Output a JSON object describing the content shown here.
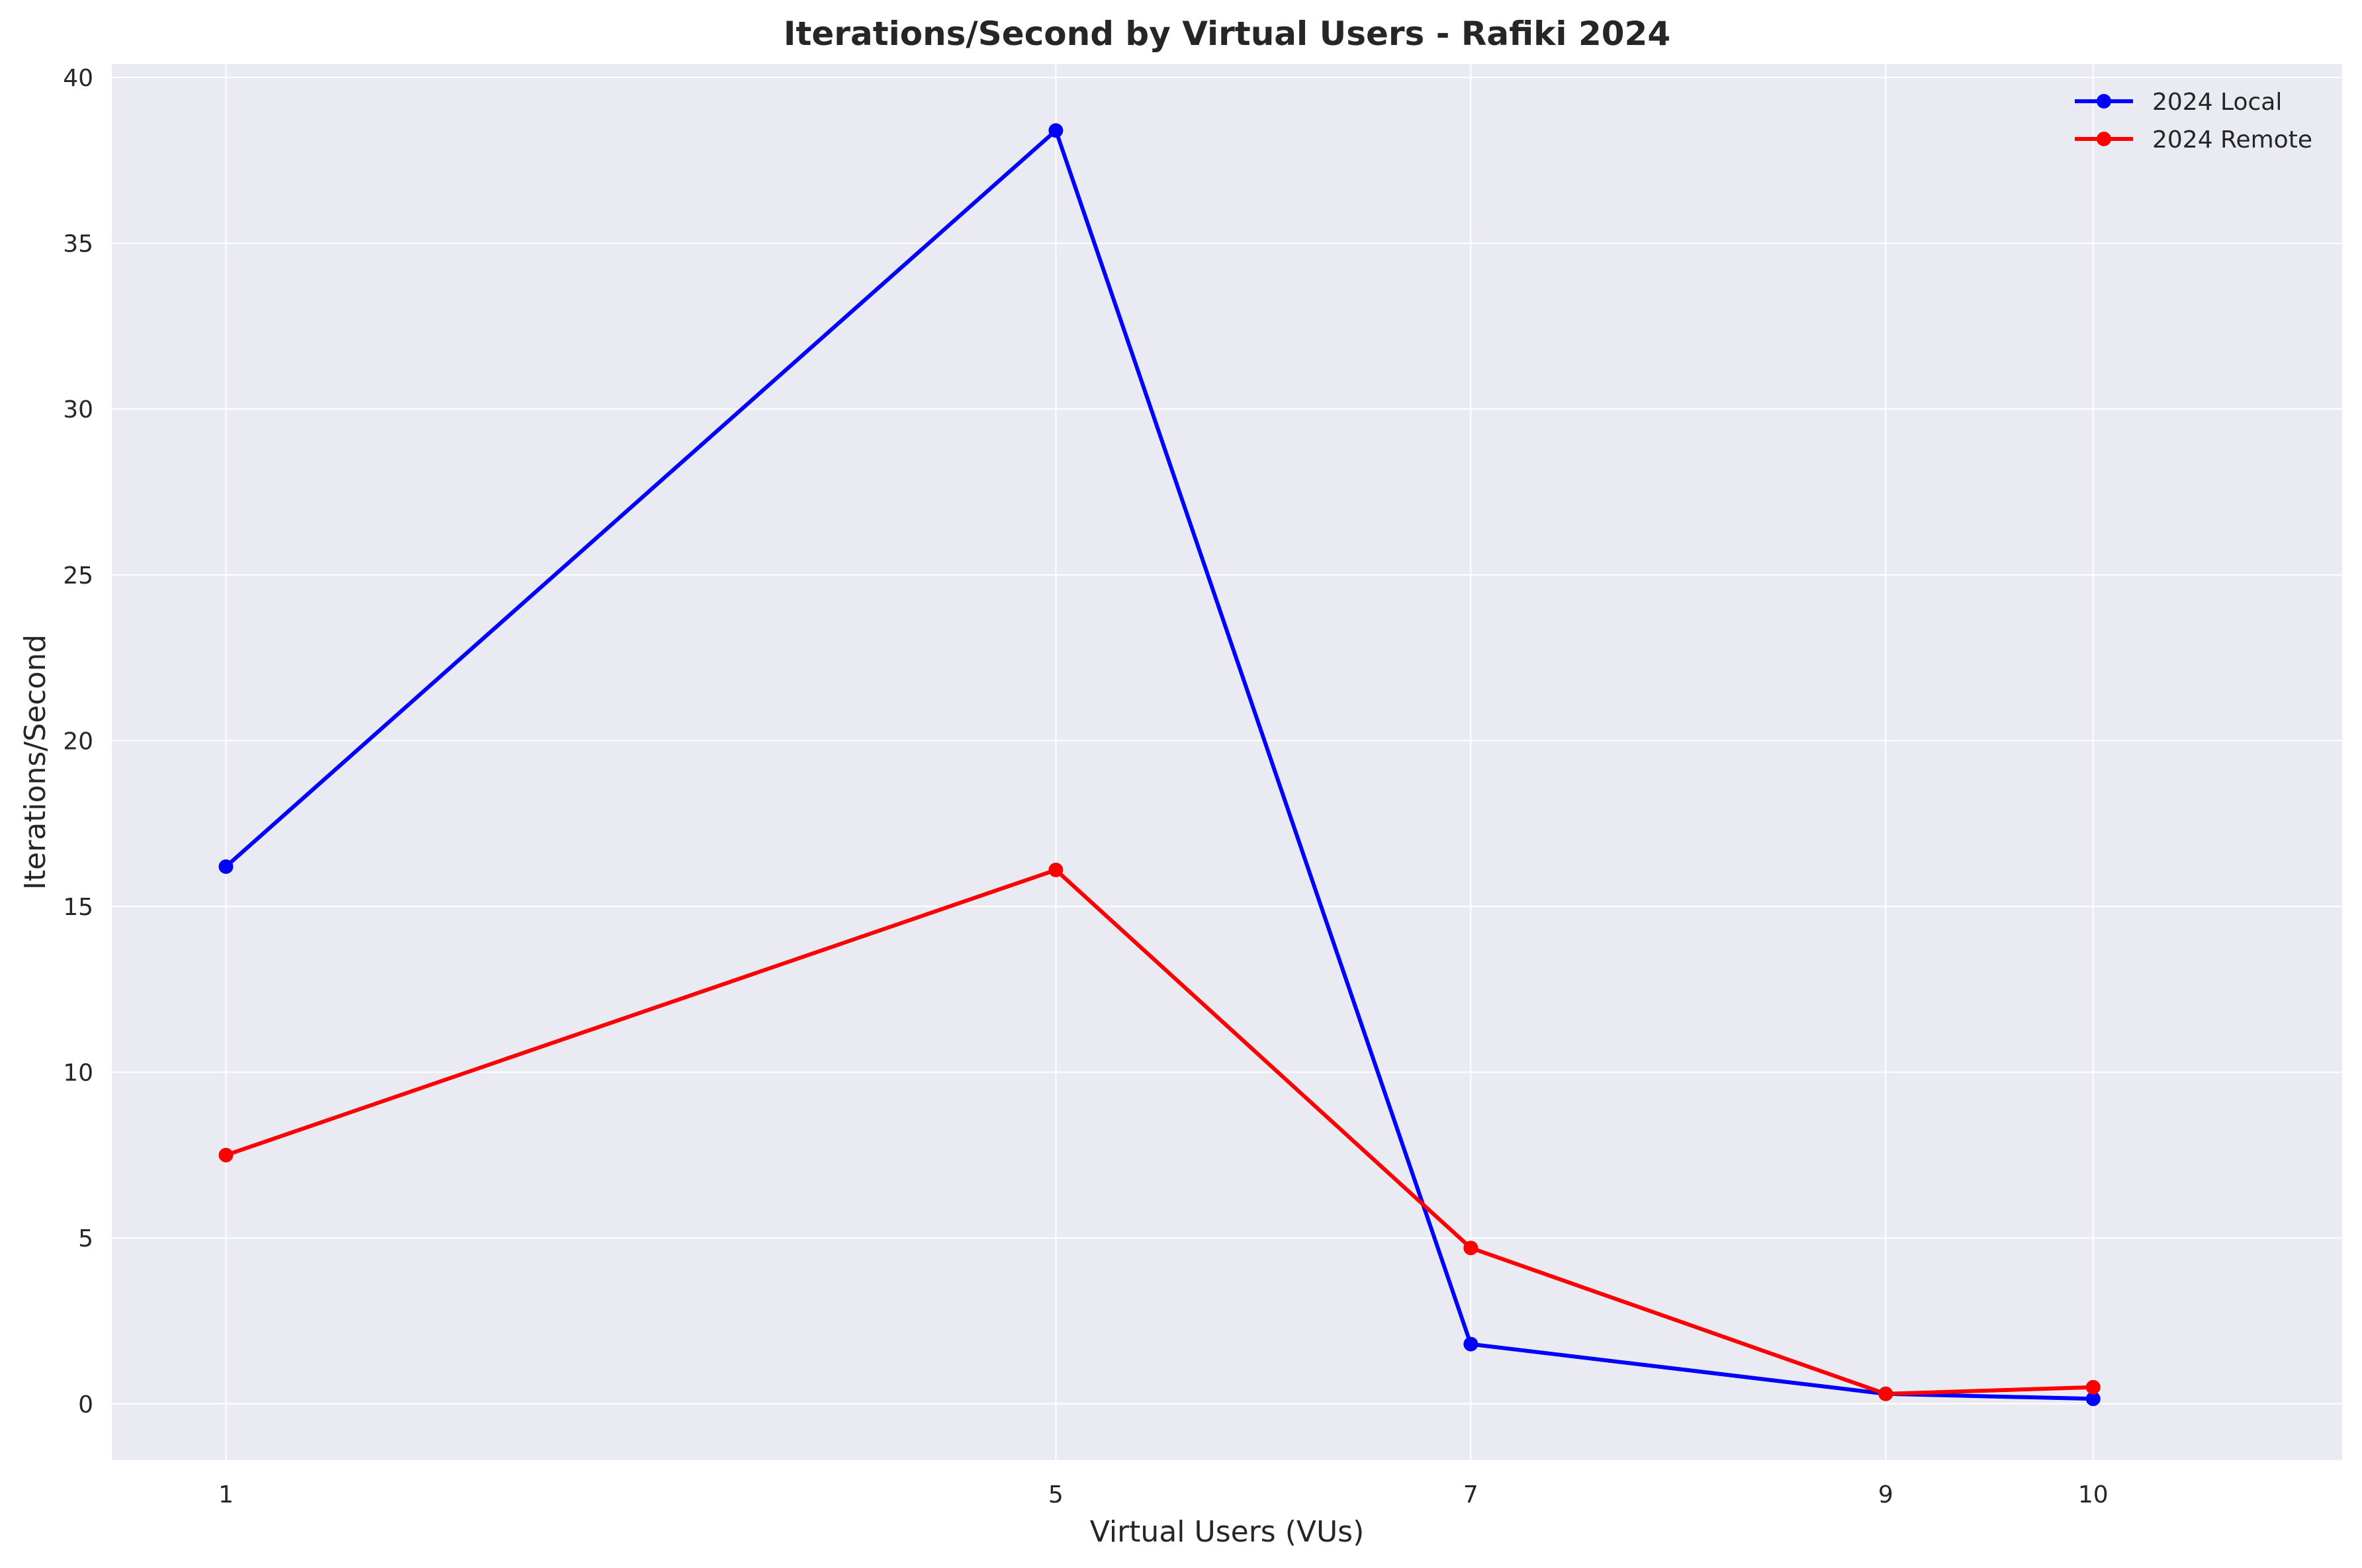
{
  "chart_data": {
    "type": "line",
    "title": "Iterations/Second by Virtual Users - Rafiki 2024",
    "xlabel": "Virtual Users (VUs)",
    "ylabel": "Iterations/Second",
    "x": [
      1,
      5,
      7,
      9,
      10
    ],
    "x_ticks": [
      "1",
      "5",
      "7",
      "9",
      "10"
    ],
    "xlim": [
      0.45,
      11.2
    ],
    "ylim": [
      -1.7,
      40.4
    ],
    "y_ticks": [
      0,
      5,
      10,
      15,
      20,
      25,
      30,
      35,
      40
    ],
    "grid": true,
    "legend_position": "top-right",
    "series": [
      {
        "name": "2024 Local",
        "color": "#0000ff",
        "values": [
          16.2,
          38.4,
          1.8,
          0.3,
          0.15
        ]
      },
      {
        "name": "2024 Remote",
        "color": "#ff0000",
        "values": [
          7.5,
          16.1,
          4.7,
          0.3,
          0.5
        ]
      }
    ],
    "background_color": "#eaeaf2",
    "grid_color": "#ffffff"
  }
}
